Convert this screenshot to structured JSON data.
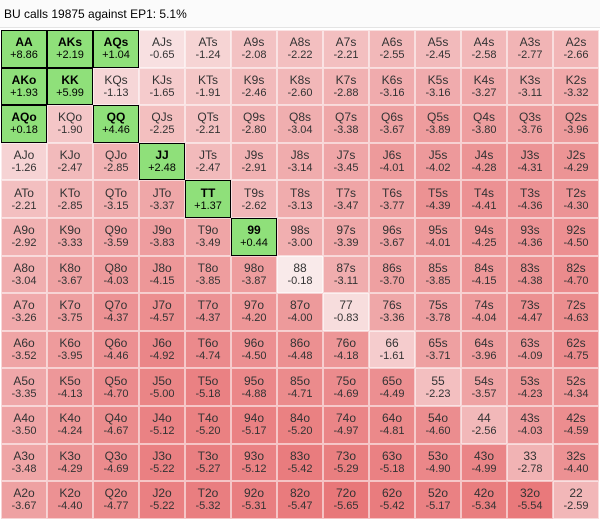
{
  "header": {
    "title": "BU calls 19875 against EP1: 5.1%"
  },
  "grid": {
    "rows": [
      [
        [
          "AA",
          "+8.86"
        ],
        [
          "AKs",
          "+2.19"
        ],
        [
          "AQs",
          "+1.04"
        ],
        [
          "AJs",
          "-0.65"
        ],
        [
          "ATs",
          "-1.24"
        ],
        [
          "A9s",
          "-2.08"
        ],
        [
          "A8s",
          "-2.22"
        ],
        [
          "A7s",
          "-2.21"
        ],
        [
          "A6s",
          "-2.55"
        ],
        [
          "A5s",
          "-2.45"
        ],
        [
          "A4s",
          "-2.58"
        ],
        [
          "A3s",
          "-2.77"
        ],
        [
          "A2s",
          "-2.66"
        ]
      ],
      [
        [
          "AKo",
          "+1.93"
        ],
        [
          "KK",
          "+5.99"
        ],
        [
          "KQs",
          "-1.13"
        ],
        [
          "KJs",
          "-1.65"
        ],
        [
          "KTs",
          "-1.91"
        ],
        [
          "K9s",
          "-2.46"
        ],
        [
          "K8s",
          "-2.60"
        ],
        [
          "K7s",
          "-2.88"
        ],
        [
          "K6s",
          "-3.16"
        ],
        [
          "K5s",
          "-3.16"
        ],
        [
          "K4s",
          "-3.27"
        ],
        [
          "K3s",
          "-3.11"
        ],
        [
          "K2s",
          "-3.32"
        ]
      ],
      [
        [
          "AQo",
          "+0.18"
        ],
        [
          "KQo",
          "-1.90"
        ],
        [
          "QQ",
          "+4.46"
        ],
        [
          "QJs",
          "-2.25"
        ],
        [
          "QTs",
          "-2.21"
        ],
        [
          "Q9s",
          "-2.80"
        ],
        [
          "Q8s",
          "-3.04"
        ],
        [
          "Q7s",
          "-3.38"
        ],
        [
          "Q6s",
          "-3.67"
        ],
        [
          "Q5s",
          "-3.89"
        ],
        [
          "Q4s",
          "-3.80"
        ],
        [
          "Q3s",
          "-3.76"
        ],
        [
          "Q2s",
          "-3.96"
        ]
      ],
      [
        [
          "AJo",
          "-1.26"
        ],
        [
          "KJo",
          "-2.47"
        ],
        [
          "QJo",
          "-2.85"
        ],
        [
          "JJ",
          "+2.48"
        ],
        [
          "JTs",
          "-2.47"
        ],
        [
          "J9s",
          "-2.91"
        ],
        [
          "J8s",
          "-3.14"
        ],
        [
          "J7s",
          "-3.45"
        ],
        [
          "J6s",
          "-4.01"
        ],
        [
          "J5s",
          "-4.02"
        ],
        [
          "J4s",
          "-4.28"
        ],
        [
          "J3s",
          "-4.31"
        ],
        [
          "J2s",
          "-4.29"
        ]
      ],
      [
        [
          "ATo",
          "-2.21"
        ],
        [
          "KTo",
          "-2.85"
        ],
        [
          "QTo",
          "-3.15"
        ],
        [
          "JTo",
          "-3.37"
        ],
        [
          "TT",
          "+1.37"
        ],
        [
          "T9s",
          "-2.62"
        ],
        [
          "T8s",
          "-3.13"
        ],
        [
          "T7s",
          "-3.47"
        ],
        [
          "T6s",
          "-3.77"
        ],
        [
          "T5s",
          "-4.39"
        ],
        [
          "T4s",
          "-4.41"
        ],
        [
          "T3s",
          "-4.36"
        ],
        [
          "T2s",
          "-4.30"
        ]
      ],
      [
        [
          "A9o",
          "-2.92"
        ],
        [
          "K9o",
          "-3.33"
        ],
        [
          "Q9o",
          "-3.59"
        ],
        [
          "J9o",
          "-3.83"
        ],
        [
          "T9o",
          "-3.49"
        ],
        [
          "99",
          "+0.44"
        ],
        [
          "98s",
          "-3.00"
        ],
        [
          "97s",
          "-3.39"
        ],
        [
          "96s",
          "-3.67"
        ],
        [
          "95s",
          "-4.01"
        ],
        [
          "94s",
          "-4.25"
        ],
        [
          "93s",
          "-4.36"
        ],
        [
          "92s",
          "-4.50"
        ]
      ],
      [
        [
          "A8o",
          "-3.04"
        ],
        [
          "K8o",
          "-3.67"
        ],
        [
          "Q8o",
          "-4.03"
        ],
        [
          "J8o",
          "-4.15"
        ],
        [
          "T8o",
          "-3.85"
        ],
        [
          "98o",
          "-3.87"
        ],
        [
          "88",
          "-0.18"
        ],
        [
          "87s",
          "-3.11"
        ],
        [
          "86s",
          "-3.70"
        ],
        [
          "85s",
          "-3.85"
        ],
        [
          "84s",
          "-4.15"
        ],
        [
          "83s",
          "-4.38"
        ],
        [
          "82s",
          "-4.70"
        ]
      ],
      [
        [
          "A7o",
          "-3.26"
        ],
        [
          "K7o",
          "-3.75"
        ],
        [
          "Q7o",
          "-4.37"
        ],
        [
          "J7o",
          "-4.57"
        ],
        [
          "T7o",
          "-4.37"
        ],
        [
          "97o",
          "-4.20"
        ],
        [
          "87o",
          "-4.00"
        ],
        [
          "77",
          "-0.83"
        ],
        [
          "76s",
          "-3.36"
        ],
        [
          "75s",
          "-3.78"
        ],
        [
          "74s",
          "-4.04"
        ],
        [
          "73s",
          "-4.47"
        ],
        [
          "72s",
          "-4.63"
        ]
      ],
      [
        [
          "A6o",
          "-3.52"
        ],
        [
          "K6o",
          "-3.95"
        ],
        [
          "Q6o",
          "-4.46"
        ],
        [
          "J6o",
          "-4.92"
        ],
        [
          "T6o",
          "-4.74"
        ],
        [
          "96o",
          "-4.50"
        ],
        [
          "86o",
          "-4.48"
        ],
        [
          "76o",
          "-4.18"
        ],
        [
          "66",
          "-1.61"
        ],
        [
          "65s",
          "-3.71"
        ],
        [
          "64s",
          "-3.96"
        ],
        [
          "63s",
          "-4.09"
        ],
        [
          "62s",
          "-4.75"
        ]
      ],
      [
        [
          "A5o",
          "-3.35"
        ],
        [
          "K5o",
          "-4.13"
        ],
        [
          "Q5o",
          "-4.70"
        ],
        [
          "J5o",
          "-5.00"
        ],
        [
          "T5o",
          "-5.18"
        ],
        [
          "95o",
          "-4.88"
        ],
        [
          "85o",
          "-4.71"
        ],
        [
          "75o",
          "-4.69"
        ],
        [
          "65o",
          "-4.49"
        ],
        [
          "55",
          "-2.23"
        ],
        [
          "54s",
          "-3.57"
        ],
        [
          "53s",
          "-4.23"
        ],
        [
          "52s",
          "-4.34"
        ]
      ],
      [
        [
          "A4o",
          "-3.50"
        ],
        [
          "K4o",
          "-4.24"
        ],
        [
          "Q4o",
          "-4.67"
        ],
        [
          "J4o",
          "-5.12"
        ],
        [
          "T4o",
          "-5.20"
        ],
        [
          "94o",
          "-5.17"
        ],
        [
          "84o",
          "-5.20"
        ],
        [
          "74o",
          "-4.97"
        ],
        [
          "64o",
          "-4.81"
        ],
        [
          "54o",
          "-4.60"
        ],
        [
          "44",
          "-2.56"
        ],
        [
          "43s",
          "-4.03"
        ],
        [
          "42s",
          "-4.59"
        ]
      ],
      [
        [
          "A3o",
          "-3.48"
        ],
        [
          "K3o",
          "-4.29"
        ],
        [
          "Q3o",
          "-4.69"
        ],
        [
          "J3o",
          "-5.22"
        ],
        [
          "T3o",
          "-5.27"
        ],
        [
          "93o",
          "-5.12"
        ],
        [
          "83o",
          "-5.42"
        ],
        [
          "73o",
          "-5.29"
        ],
        [
          "63o",
          "-5.18"
        ],
        [
          "53o",
          "-4.90"
        ],
        [
          "43o",
          "-4.99"
        ],
        [
          "33",
          "-2.78"
        ],
        [
          "32s",
          "-4.40"
        ]
      ],
      [
        [
          "A2o",
          "-3.67"
        ],
        [
          "K2o",
          "-4.40"
        ],
        [
          "Q2o",
          "-4.77"
        ],
        [
          "J2o",
          "-5.22"
        ],
        [
          "T2o",
          "-5.32"
        ],
        [
          "92o",
          "-5.31"
        ],
        [
          "82o",
          "-5.47"
        ],
        [
          "72o",
          "-5.65"
        ],
        [
          "62o",
          "-5.42"
        ],
        [
          "52o",
          "-5.17"
        ],
        [
          "42o",
          "-5.34"
        ],
        [
          "32o",
          "-5.54"
        ],
        [
          "22",
          "-2.59"
        ]
      ]
    ]
  },
  "colors": {
    "positive_fill": "#8fe07a",
    "neutral_fill": "#ffffff",
    "negative_fill": "#e8787a",
    "positive_border": "#000000"
  }
}
